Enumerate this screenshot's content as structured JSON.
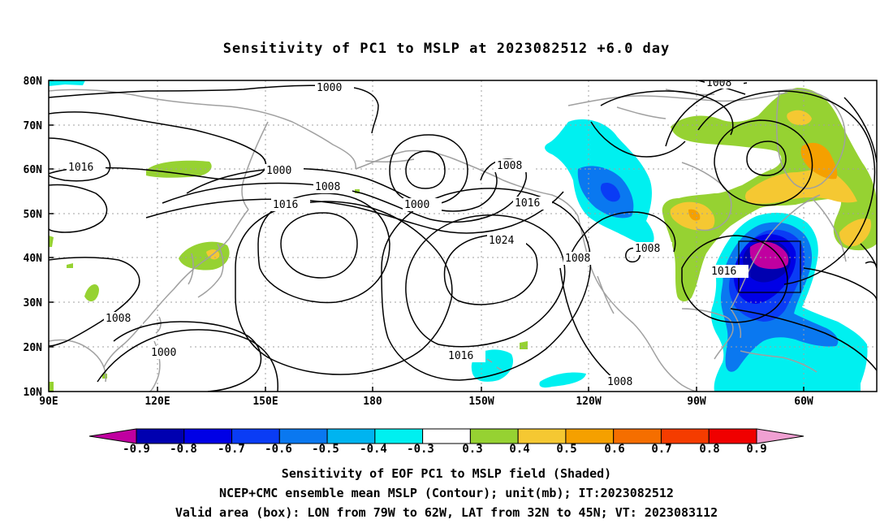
{
  "title": "Sensitivity of PC1 to MSLP at 2023082512 +6.0 day",
  "lat_labels": [
    "80N",
    "70N",
    "60N",
    "50N",
    "40N",
    "30N",
    "20N",
    "10N"
  ],
  "lon_labels": [
    "90E",
    "120E",
    "150E",
    "180",
    "150W",
    "120W",
    "90W",
    "60W"
  ],
  "contour_labels": [
    "1000",
    "1016",
    "1000",
    "1008",
    "1000",
    "1008",
    "1016",
    "1016",
    "1024",
    "1008",
    "1008",
    "1008",
    "1000",
    "1016",
    "1008",
    "1008",
    "1016"
  ],
  "colorbar": {
    "labels": [
      "-0.9",
      "-0.8",
      "-0.7",
      "-0.6",
      "-0.5",
      "-0.4",
      "-0.3",
      "0.3",
      "0.4",
      "0.5",
      "0.6",
      "0.7",
      "0.8",
      "0.9"
    ],
    "colors": [
      "#c000a0",
      "#0000b0",
      "#0000e6",
      "#0a3cf5",
      "#0a78f0",
      "#00b4f0",
      "#00f0f0",
      "#ffffff",
      "#96d232",
      "#f5c832",
      "#f5a000",
      "#f56e00",
      "#f53c00",
      "#f00000",
      "#f0a0d2"
    ]
  },
  "captions": [
    "Sensitivity of EOF PC1 to MSLP field (Shaded)",
    "NCEP+CMC ensemble mean MSLP (Contour); unit(mb); IT:2023082512",
    "Valid area (box): LON from 79W to 62W, LAT from 32N to 45N; VT: 2023083112"
  ],
  "colors": {
    "land_outline": "#a0a0a0",
    "contour": "#000000",
    "grid": "#a0a0a0"
  }
}
